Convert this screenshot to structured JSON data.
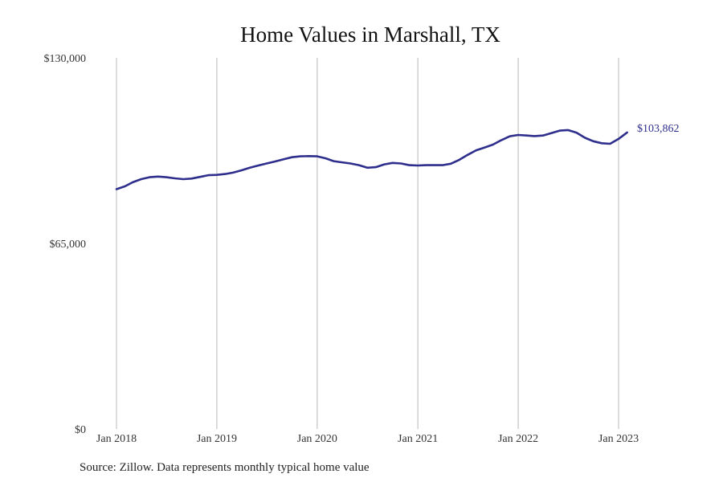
{
  "chart_data": {
    "type": "line",
    "title": "Home Values in Marshall, TX",
    "xlabel": "",
    "ylabel": "",
    "x_ticks": [
      {
        "label": "Jan 2018",
        "date": "2018-01-01"
      },
      {
        "label": "Jan 2019",
        "date": "2019-01-01"
      },
      {
        "label": "Jan 2020",
        "date": "2020-01-01"
      },
      {
        "label": "Jan 2021",
        "date": "2021-01-01"
      },
      {
        "label": "Jan 2022",
        "date": "2022-01-01"
      },
      {
        "label": "Jan 2023",
        "date": "2023-01-01"
      }
    ],
    "y_ticks": [
      {
        "label": "$130,000",
        "value": 130000
      },
      {
        "label": "$65,000",
        "value": 65000
      },
      {
        "label": "$0",
        "value": 0
      }
    ],
    "ylim": [
      0,
      130000
    ],
    "xlim": [
      "2018-01-01",
      "2023-02-01"
    ],
    "grid": {
      "vertical": true,
      "horizontal": false
    },
    "legend": "none",
    "end_label": "$103,862",
    "line_color": "#2e2e8c",
    "grid_color": "#b8b8b8",
    "series": [
      {
        "x": [
          "2018-01-01",
          "2018-02-01",
          "2018-03-01",
          "2018-04-01",
          "2018-05-01",
          "2018-06-01",
          "2018-07-01",
          "2018-08-01",
          "2018-09-01",
          "2018-10-01",
          "2018-11-01",
          "2018-12-01",
          "2019-01-01",
          "2019-02-01",
          "2019-03-01",
          "2019-04-01",
          "2019-05-01",
          "2019-06-01",
          "2019-07-01",
          "2019-08-01",
          "2019-09-01",
          "2019-10-01",
          "2019-11-01",
          "2019-12-01",
          "2020-01-01",
          "2020-02-01",
          "2020-03-01",
          "2020-04-01",
          "2020-05-01",
          "2020-06-01",
          "2020-07-01",
          "2020-08-01",
          "2020-09-01",
          "2020-10-01",
          "2020-11-01",
          "2020-12-01",
          "2021-01-01",
          "2021-02-01",
          "2021-03-01",
          "2021-04-01",
          "2021-05-01",
          "2021-06-01",
          "2021-07-01",
          "2021-08-01",
          "2021-09-01",
          "2021-10-01",
          "2021-11-01",
          "2021-12-01",
          "2022-01-01",
          "2022-02-01",
          "2022-03-01",
          "2022-04-01",
          "2022-05-01",
          "2022-06-01",
          "2022-07-01",
          "2022-08-01",
          "2022-09-01",
          "2022-10-01",
          "2022-11-01",
          "2022-12-01",
          "2023-01-01",
          "2023-02-01"
        ],
        "values": [
          84000,
          85000,
          86400,
          87500,
          88200,
          88400,
          88200,
          87800,
          87500,
          87700,
          88300,
          88900,
          89000,
          89300,
          89800,
          90600,
          91500,
          92300,
          93000,
          93700,
          94500,
          95200,
          95500,
          95600,
          95500,
          94800,
          93800,
          93400,
          93000,
          92400,
          91500,
          91700,
          92700,
          93200,
          93000,
          92400,
          92300,
          92400,
          92400,
          92400,
          92900,
          94300,
          96000,
          97600,
          98600,
          99600,
          101200,
          102500,
          103000,
          102800,
          102600,
          102800,
          103600,
          104500,
          104700,
          103800,
          102000,
          100800,
          100100,
          99900,
          101600,
          103862
        ]
      }
    ]
  },
  "footer": {
    "source": "Source: Zillow. Data represents monthly typical home value"
  }
}
